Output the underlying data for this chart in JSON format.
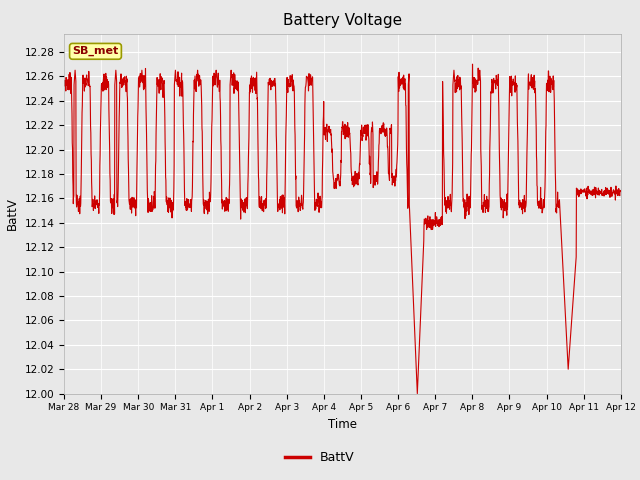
{
  "title": "Battery Voltage",
  "xlabel": "Time",
  "ylabel": "BattV",
  "ylim": [
    12.0,
    12.295
  ],
  "yticks": [
    12.0,
    12.02,
    12.04,
    12.06,
    12.08,
    12.1,
    12.12,
    12.14,
    12.16,
    12.18,
    12.2,
    12.22,
    12.24,
    12.26,
    12.28
  ],
  "line_color": "#cc0000",
  "line_width": 0.8,
  "plot_bg_color": "#e8e8e8",
  "legend_label": "BattV",
  "annotation_text": "SB_met",
  "annotation_bg": "#ffffaa",
  "annotation_border": "#999900",
  "x_tick_labels": [
    "Mar 28",
    "Mar 29",
    "Mar 30",
    "Mar 31",
    "Apr 1",
    "Apr 2",
    "Apr 3",
    "Apr 4",
    "Apr 5",
    "Apr 6",
    "Apr 7",
    "Apr 8",
    "Apr 9",
    "Apr 10",
    "Apr 11",
    "Apr 12"
  ],
  "x_tick_positions": [
    0,
    1,
    2,
    3,
    4,
    5,
    6,
    7,
    8,
    9,
    10,
    11,
    12,
    13,
    14,
    15
  ]
}
